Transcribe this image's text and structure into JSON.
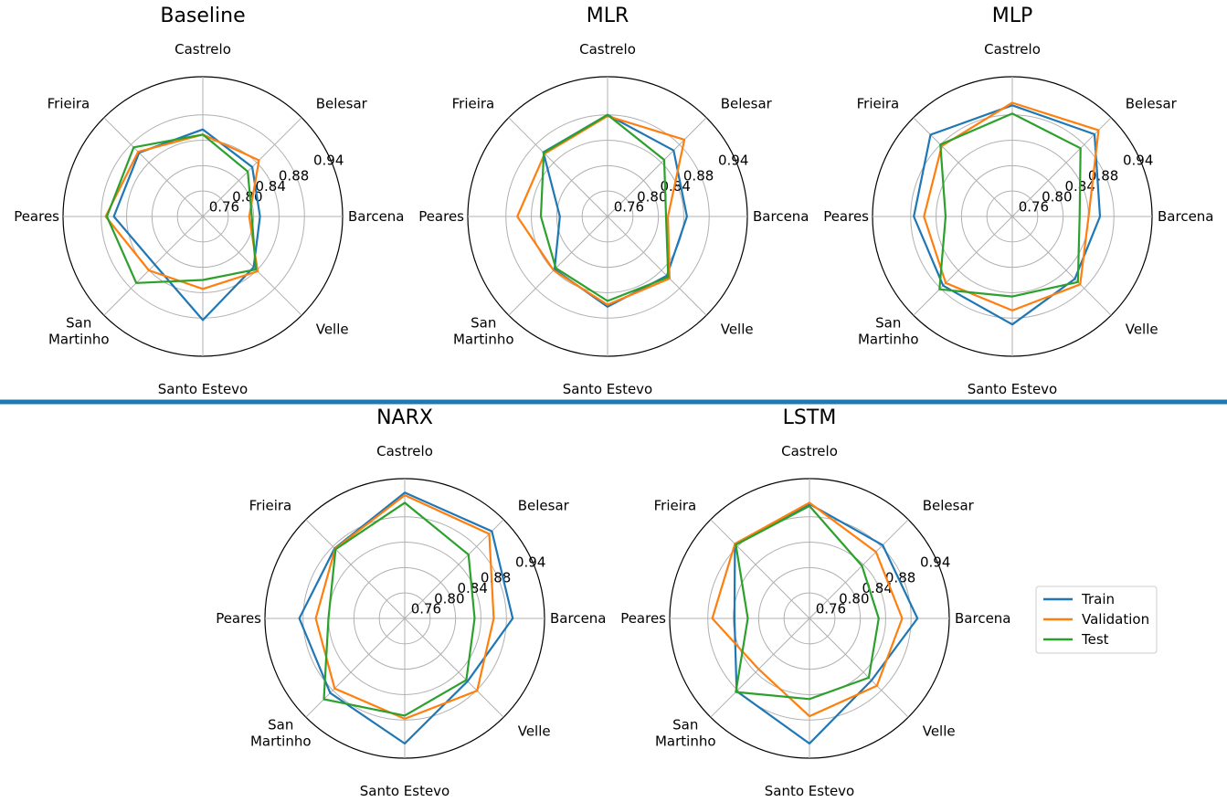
{
  "separator_color": "#1f77b4",
  "chart_data": [
    {
      "type": "radar",
      "title": "Baseline",
      "categories": [
        "Castrelo",
        "Belesar",
        "Barcena",
        "Velle",
        "Santo Estevo",
        "San Martinho",
        "Peares",
        "Frieira"
      ],
      "rlim": [
        0.72,
        0.94
      ],
      "rticks": [
        0.76,
        0.8,
        0.84,
        0.88,
        0.94
      ],
      "series": [
        {
          "name": "Train",
          "values": [
            0.857,
            0.83,
            0.81,
            0.833,
            0.883,
            0.827,
            0.86,
            0.862
          ]
        },
        {
          "name": "Validation",
          "values": [
            0.849,
            0.845,
            0.793,
            0.842,
            0.834,
            0.84,
            0.873,
            0.864
          ]
        },
        {
          "name": "Test",
          "values": [
            0.849,
            0.82,
            0.797,
            0.838,
            0.82,
            0.868,
            0.871,
            0.874
          ]
        }
      ]
    },
    {
      "type": "radar",
      "title": "MLR",
      "categories": [
        "Castrelo",
        "Belesar",
        "Barcena",
        "Velle",
        "Santo Estevo",
        "San Martinho",
        "Peares",
        "Frieira"
      ],
      "rlim": [
        0.72,
        0.94
      ],
      "rticks": [
        0.76,
        0.8,
        0.84,
        0.88,
        0.94
      ],
      "series": [
        {
          "name": "Train",
          "values": [
            0.88,
            0.867,
            0.845,
            0.852,
            0.862,
            0.838,
            0.795,
            0.863
          ]
        },
        {
          "name": "Validation",
          "values": [
            0.878,
            0.891,
            0.815,
            0.858,
            0.859,
            0.84,
            0.862,
            0.86
          ]
        },
        {
          "name": "Test",
          "values": [
            0.88,
            0.846,
            0.812,
            0.855,
            0.853,
            0.835,
            0.825,
            0.862
          ]
        }
      ]
    },
    {
      "type": "radar",
      "title": "MLP",
      "categories": [
        "Castrelo",
        "Belesar",
        "Barcena",
        "Velle",
        "Santo Estevo",
        "San Martinho",
        "Peares",
        "Frieira"
      ],
      "rlim": [
        0.72,
        0.94
      ],
      "rticks": [
        0.76,
        0.8,
        0.84,
        0.88,
        0.94
      ],
      "series": [
        {
          "name": "Train",
          "values": [
            0.895,
            0.903,
            0.858,
            0.859,
            0.89,
            0.874,
            0.875,
            0.902
          ]
        },
        {
          "name": "Validation",
          "values": [
            0.899,
            0.912,
            0.84,
            0.871,
            0.868,
            0.868,
            0.859,
            0.877
          ]
        },
        {
          "name": "Test",
          "values": [
            0.882,
            0.872,
            0.826,
            0.866,
            0.846,
            0.882,
            0.825,
            0.88
          ]
        }
      ]
    },
    {
      "type": "radar",
      "title": "NARX",
      "categories": [
        "Castrelo",
        "Belesar",
        "Barcena",
        "Velle",
        "Santo Estevo",
        "San Martinho",
        "Peares",
        "Frieira"
      ],
      "rlim": [
        0.72,
        0.94
      ],
      "rticks": [
        0.76,
        0.8,
        0.84,
        0.88,
        0.94
      ],
      "series": [
        {
          "name": "Train",
          "values": [
            0.918,
            0.914,
            0.89,
            0.86,
            0.917,
            0.886,
            0.886,
            0.876
          ]
        },
        {
          "name": "Validation",
          "values": [
            0.914,
            0.908,
            0.86,
            0.881,
            0.878,
            0.876,
            0.86,
            0.875
          ]
        },
        {
          "name": "Test",
          "values": [
            0.902,
            0.862,
            0.83,
            0.857,
            0.873,
            0.9,
            0.84,
            0.874
          ]
        }
      ]
    },
    {
      "type": "radar",
      "title": "LSTM",
      "categories": [
        "Castrelo",
        "Belesar",
        "Barcena",
        "Velle",
        "Santo Estevo",
        "San Martinho",
        "Peares",
        "Frieira"
      ],
      "rlim": [
        0.72,
        0.94
      ],
      "rticks": [
        0.76,
        0.8,
        0.84,
        0.88,
        0.94
      ],
      "series": [
        {
          "name": "Train",
          "values": [
            0.9,
            0.883,
            0.89,
            0.858,
            0.917,
            0.882,
            0.838,
            0.886
          ]
        },
        {
          "name": "Validation",
          "values": [
            0.902,
            0.868,
            0.866,
            0.87,
            0.874,
            0.833,
            0.873,
            0.886
          ]
        },
        {
          "name": "Test",
          "values": [
            0.897,
            0.837,
            0.829,
            0.852,
            0.847,
            0.884,
            0.817,
            0.884
          ]
        }
      ]
    }
  ],
  "legend": {
    "items": [
      {
        "label": "Train",
        "color": "#1f77b4"
      },
      {
        "label": "Validation",
        "color": "#ff7f0e"
      },
      {
        "label": "Test",
        "color": "#2ca02c"
      }
    ]
  }
}
